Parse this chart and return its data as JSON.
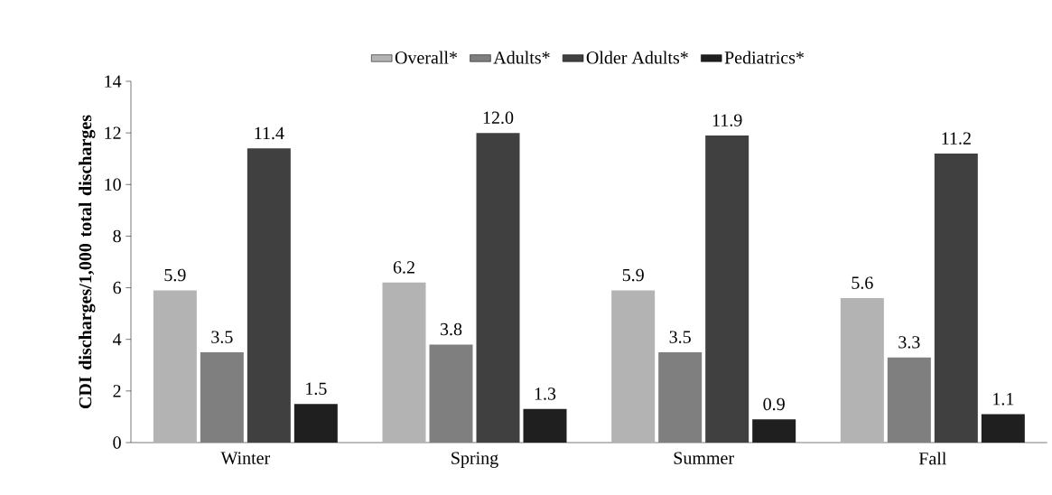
{
  "chart_data": {
    "type": "bar",
    "ylabel": "CDI discharges/1,000 total discharges",
    "categories": [
      "Winter",
      "Spring",
      "Summer",
      "Fall"
    ],
    "series": [
      {
        "name": "Overall*",
        "color": "#b3b3b3",
        "values": [
          5.9,
          6.2,
          5.9,
          5.6
        ],
        "value_labels": [
          "5.9",
          "6.2",
          "5.9",
          "5.6"
        ]
      },
      {
        "name": "Adults*",
        "color": "#7f7f7f",
        "values": [
          3.5,
          3.8,
          3.5,
          3.3
        ],
        "value_labels": [
          "3.5",
          "3.8",
          "3.5",
          "3.3"
        ]
      },
      {
        "name": "Older Adults*",
        "color": "#404040",
        "values": [
          11.4,
          12.0,
          11.9,
          11.2
        ],
        "value_labels": [
          "11.4",
          "12.0",
          "11.9",
          "11.2"
        ]
      },
      {
        "name": "Pediatrics*",
        "color": "#1f1f1f",
        "values": [
          1.5,
          1.3,
          0.9,
          1.1
        ],
        "value_labels": [
          "1.5",
          "1.3",
          "0.9",
          "1.1"
        ]
      }
    ],
    "ylim": [
      0,
      14
    ],
    "yticks": [
      0,
      2,
      4,
      6,
      8,
      10,
      12,
      14
    ],
    "legend": "top",
    "grid": false
  }
}
